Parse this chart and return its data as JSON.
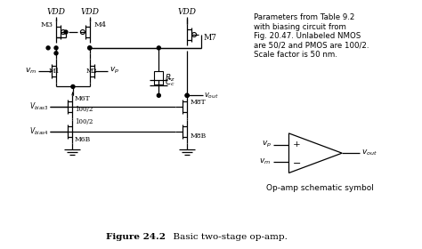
{
  "bg_color": "#ffffff",
  "fig_width": 4.74,
  "fig_height": 2.8,
  "dpi": 100,
  "title_bold": "Figure 24.2",
  "title_normal": "  Basic two-stage op-amp.",
  "param_text": "Parameters from Table 9.2\nwith biasing circuit from\nFig. 20.47. Unlabeled NMOS\nare 50/2 and PMOS are 100/2.\nScale factor is 50 nm.",
  "opamp_label": "Op-amp schematic symbol"
}
